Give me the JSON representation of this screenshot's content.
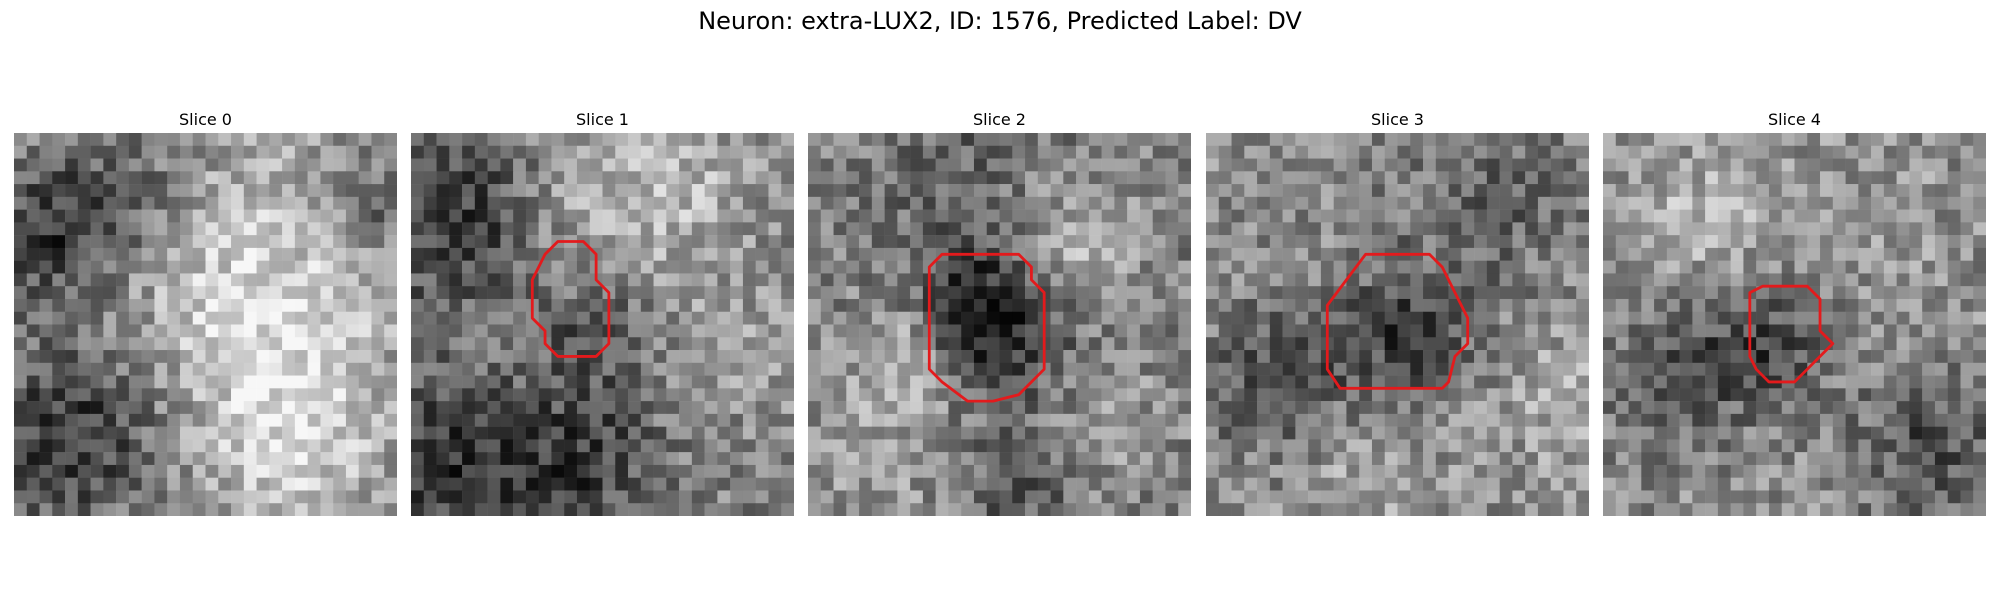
{
  "figure": {
    "title": "Neuron: extra-LUX2, ID: 1576, Predicted Label: DV",
    "contour_color": "#e31a1c",
    "colormap": "gray"
  },
  "panels": [
    {
      "title": "Slice 0",
      "has_contour": false
    },
    {
      "title": "Slice 1",
      "has_contour": true
    },
    {
      "title": "Slice 2",
      "has_contour": true
    },
    {
      "title": "Slice 3",
      "has_contour": true
    },
    {
      "title": "Slice 4",
      "has_contour": true
    }
  ]
}
